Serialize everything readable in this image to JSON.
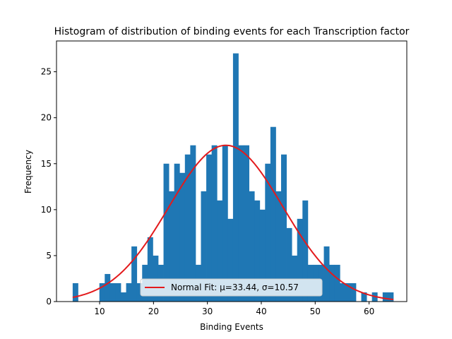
{
  "chart_data": {
    "type": "bar",
    "title": "Histogram of distribution of binding events for each Transcription factor",
    "xlabel": "Binding Events",
    "ylabel": "Frequency",
    "xlim": [
      2,
      67
    ],
    "ylim": [
      0,
      28.35
    ],
    "xticks": [
      10,
      20,
      30,
      40,
      50,
      60
    ],
    "yticks": [
      0,
      5,
      10,
      15,
      20,
      25
    ],
    "grid": false,
    "legend_position": "lower-center",
    "bar_color": "#1f77b4",
    "fit_color": "#e31a1c",
    "bins": {
      "start": 5,
      "end": 64.5,
      "counts": [
        2,
        0,
        0,
        0,
        0,
        2,
        3,
        2,
        2,
        1,
        2,
        6,
        2,
        4,
        7,
        5,
        4,
        15,
        12,
        15,
        14,
        16,
        17,
        4,
        12,
        16,
        17,
        11,
        17,
        9,
        27,
        17,
        17,
        12,
        11,
        10,
        15,
        19,
        12,
        16,
        8,
        5,
        9,
        11,
        4,
        4,
        4,
        6,
        4,
        4,
        2,
        2,
        2,
        0,
        1,
        0,
        1,
        0,
        1,
        1
      ]
    },
    "series": [
      {
        "type": "histogram"
      },
      {
        "type": "line",
        "name": "Normal Fit: μ=33.44, σ=10.57",
        "mu": 33.44,
        "sigma": 10.57,
        "peak": 17.0
      }
    ]
  }
}
